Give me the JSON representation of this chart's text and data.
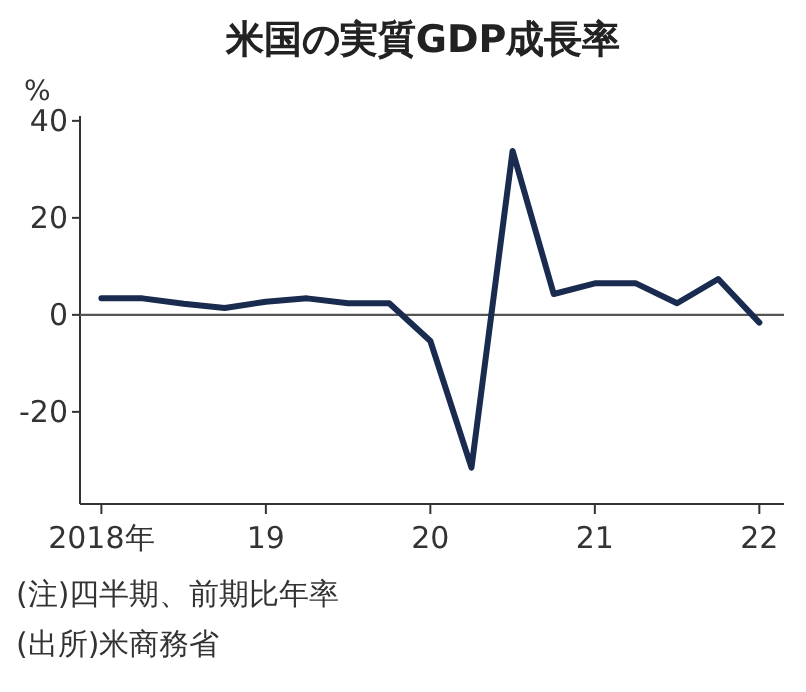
{
  "chart_data": {
    "type": "line",
    "title": "米国の実質GDP成長率",
    "ylabel": "%",
    "x": [
      2018,
      2018.25,
      2018.5,
      2018.75,
      2019,
      2019.25,
      2019.5,
      2019.75,
      2020,
      2020.25,
      2020.5,
      2020.75,
      2021,
      2021.25,
      2021.5,
      2021.75,
      2022
    ],
    "series": [
      {
        "color": "#1a2b50",
        "values": [
          3.4,
          3.4,
          2.3,
          1.4,
          2.7,
          3.4,
          2.4,
          2.4,
          -5.4,
          -31.5,
          33.8,
          4.3,
          6.5,
          6.5,
          2.4,
          7.4,
          -1.6
        ]
      }
    ],
    "xlim": [
      2017.87,
      2022.15
    ],
    "xticks": [
      {
        "value": 2018,
        "label": "2018年"
      },
      {
        "value": 2019,
        "label": "19"
      },
      {
        "value": 2020,
        "label": "20"
      },
      {
        "value": 2021,
        "label": "21"
      },
      {
        "value": 2022,
        "label": "22"
      }
    ],
    "ylim": [
      -39,
      41
    ],
    "yticks": [
      40,
      20,
      0,
      -20
    ],
    "ref_lines": [
      {
        "axis": "y",
        "value": 0,
        "color": "#555555"
      }
    ],
    "grid": false,
    "marker": "none",
    "line_style": "solid",
    "annotations": [
      "(注)四半期、前期比年率",
      "(出所)米商務省"
    ]
  }
}
